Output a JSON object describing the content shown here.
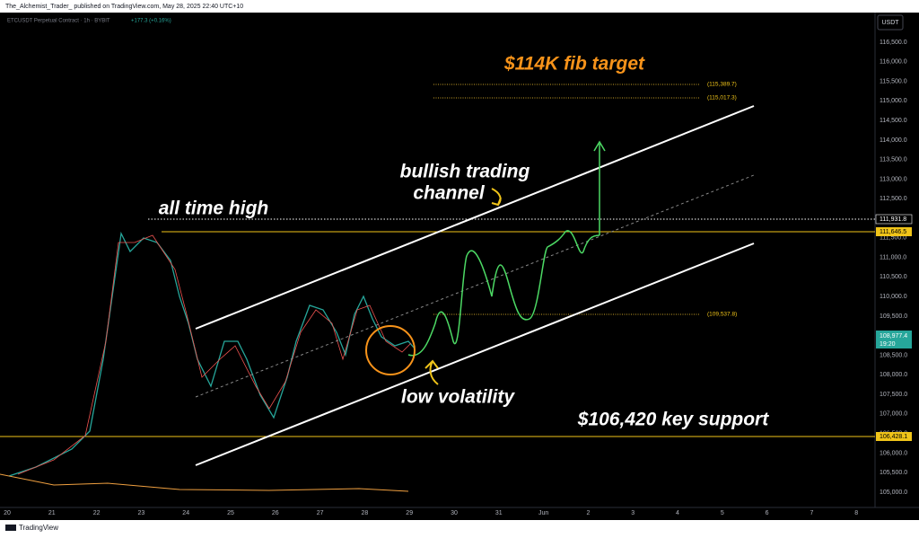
{
  "header": {
    "publisher": "The_Alchemist_Trader_ published on TradingView.com, May 28, 2025 22:40 UTC+10"
  },
  "legend": {
    "symbol": "ETCUSDT Perpetual Contract · 1h · BYBIT",
    "change": "+177.3 (+0.16%)"
  },
  "currency": "USDT",
  "annotations": {
    "fib_target": "$114K fib target",
    "channel_1": "bullish trading",
    "channel_2": "channel",
    "ath": "all time high",
    "low_vol": "low volatility",
    "support": "$106,420 key support"
  },
  "fib_labels": [
    "(115,389.7)",
    "(115,017.3)",
    "(109,537.8)"
  ],
  "price_axis": [
    "116,500.0",
    "116,000.0",
    "115,500.0",
    "115,000.0",
    "114,500.0",
    "114,000.0",
    "113,500.0",
    "113,000.0",
    "112,500.0",
    "112,000.0",
    "111,500.0",
    "111,000.0",
    "110,500.0",
    "110,000.0",
    "109,500.0",
    "109,000.0",
    "108,500.0",
    "108,000.0",
    "107,500.0",
    "107,000.0",
    "106,500.0",
    "106,000.0",
    "105,500.0",
    "105,000.0"
  ],
  "price_tags": {
    "dotted": "111,931.8",
    "yellow": "111,646.5",
    "last": "108,977.4",
    "countdown": "19:20",
    "support": "106,428.1"
  },
  "time_axis": [
    "20",
    "21",
    "22",
    "23",
    "24",
    "25",
    "26",
    "27",
    "28",
    "29",
    "30",
    "31",
    "Jun",
    "2",
    "3",
    "4",
    "5",
    "6",
    "7",
    "8"
  ],
  "footer": {
    "brand": "TradingView"
  }
}
